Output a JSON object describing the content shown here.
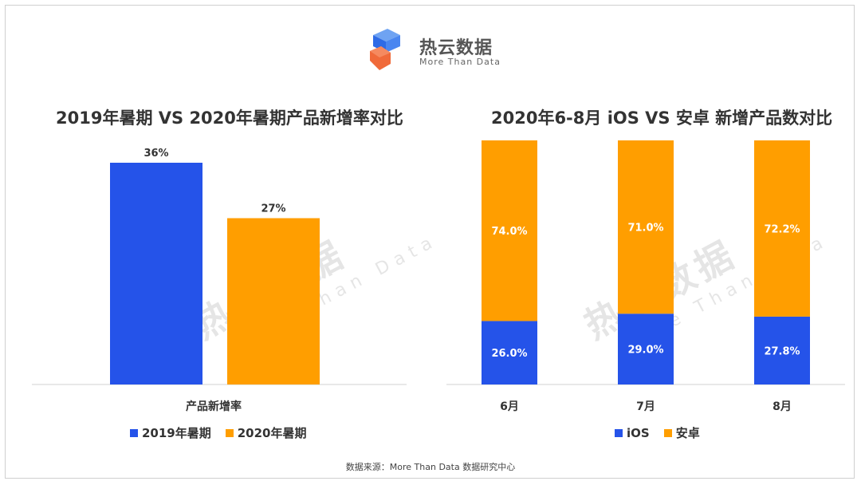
{
  "logo": {
    "name": "热云数据",
    "tagline": "More Than Data"
  },
  "colors": {
    "blue": "#2553E9",
    "orange": "#FF9E00",
    "text": "#333333"
  },
  "watermark": {
    "name": "热云数据",
    "tagline": "More Than Data"
  },
  "footer": {
    "source": "数据来源：More Than Data 数据研究中心"
  },
  "chart_data": [
    {
      "type": "bar",
      "title": "2019年暑期 VS 2020年暑期产品新增率对比",
      "categories": [
        "产品新增率"
      ],
      "series": [
        {
          "name": "2019年暑期",
          "values": [
            36
          ],
          "label": "36%",
          "color": "#2553E9"
        },
        {
          "name": "2020年暑期",
          "values": [
            27
          ],
          "label": "27%",
          "color": "#FF9E00"
        }
      ],
      "ylim": [
        0,
        36
      ],
      "legend": "bottom",
      "grid": false
    },
    {
      "type": "bar",
      "stacked": true,
      "percent": true,
      "title": "2020年6-8月 iOS VS 安卓 新增产品数对比",
      "categories": [
        "6月",
        "7月",
        "8月"
      ],
      "series": [
        {
          "name": "iOS",
          "values": [
            26.0,
            29.0,
            27.8
          ],
          "labels": [
            "26.0%",
            "29.0%",
            "27.8%"
          ],
          "color": "#2553E9"
        },
        {
          "name": "安卓",
          "values": [
            74.0,
            71.0,
            72.2
          ],
          "labels": [
            "74.0%",
            "71.0%",
            "72.2%"
          ],
          "color": "#FF9E00"
        }
      ],
      "ylim": [
        0,
        100
      ],
      "legend": "bottom",
      "grid": false
    }
  ]
}
